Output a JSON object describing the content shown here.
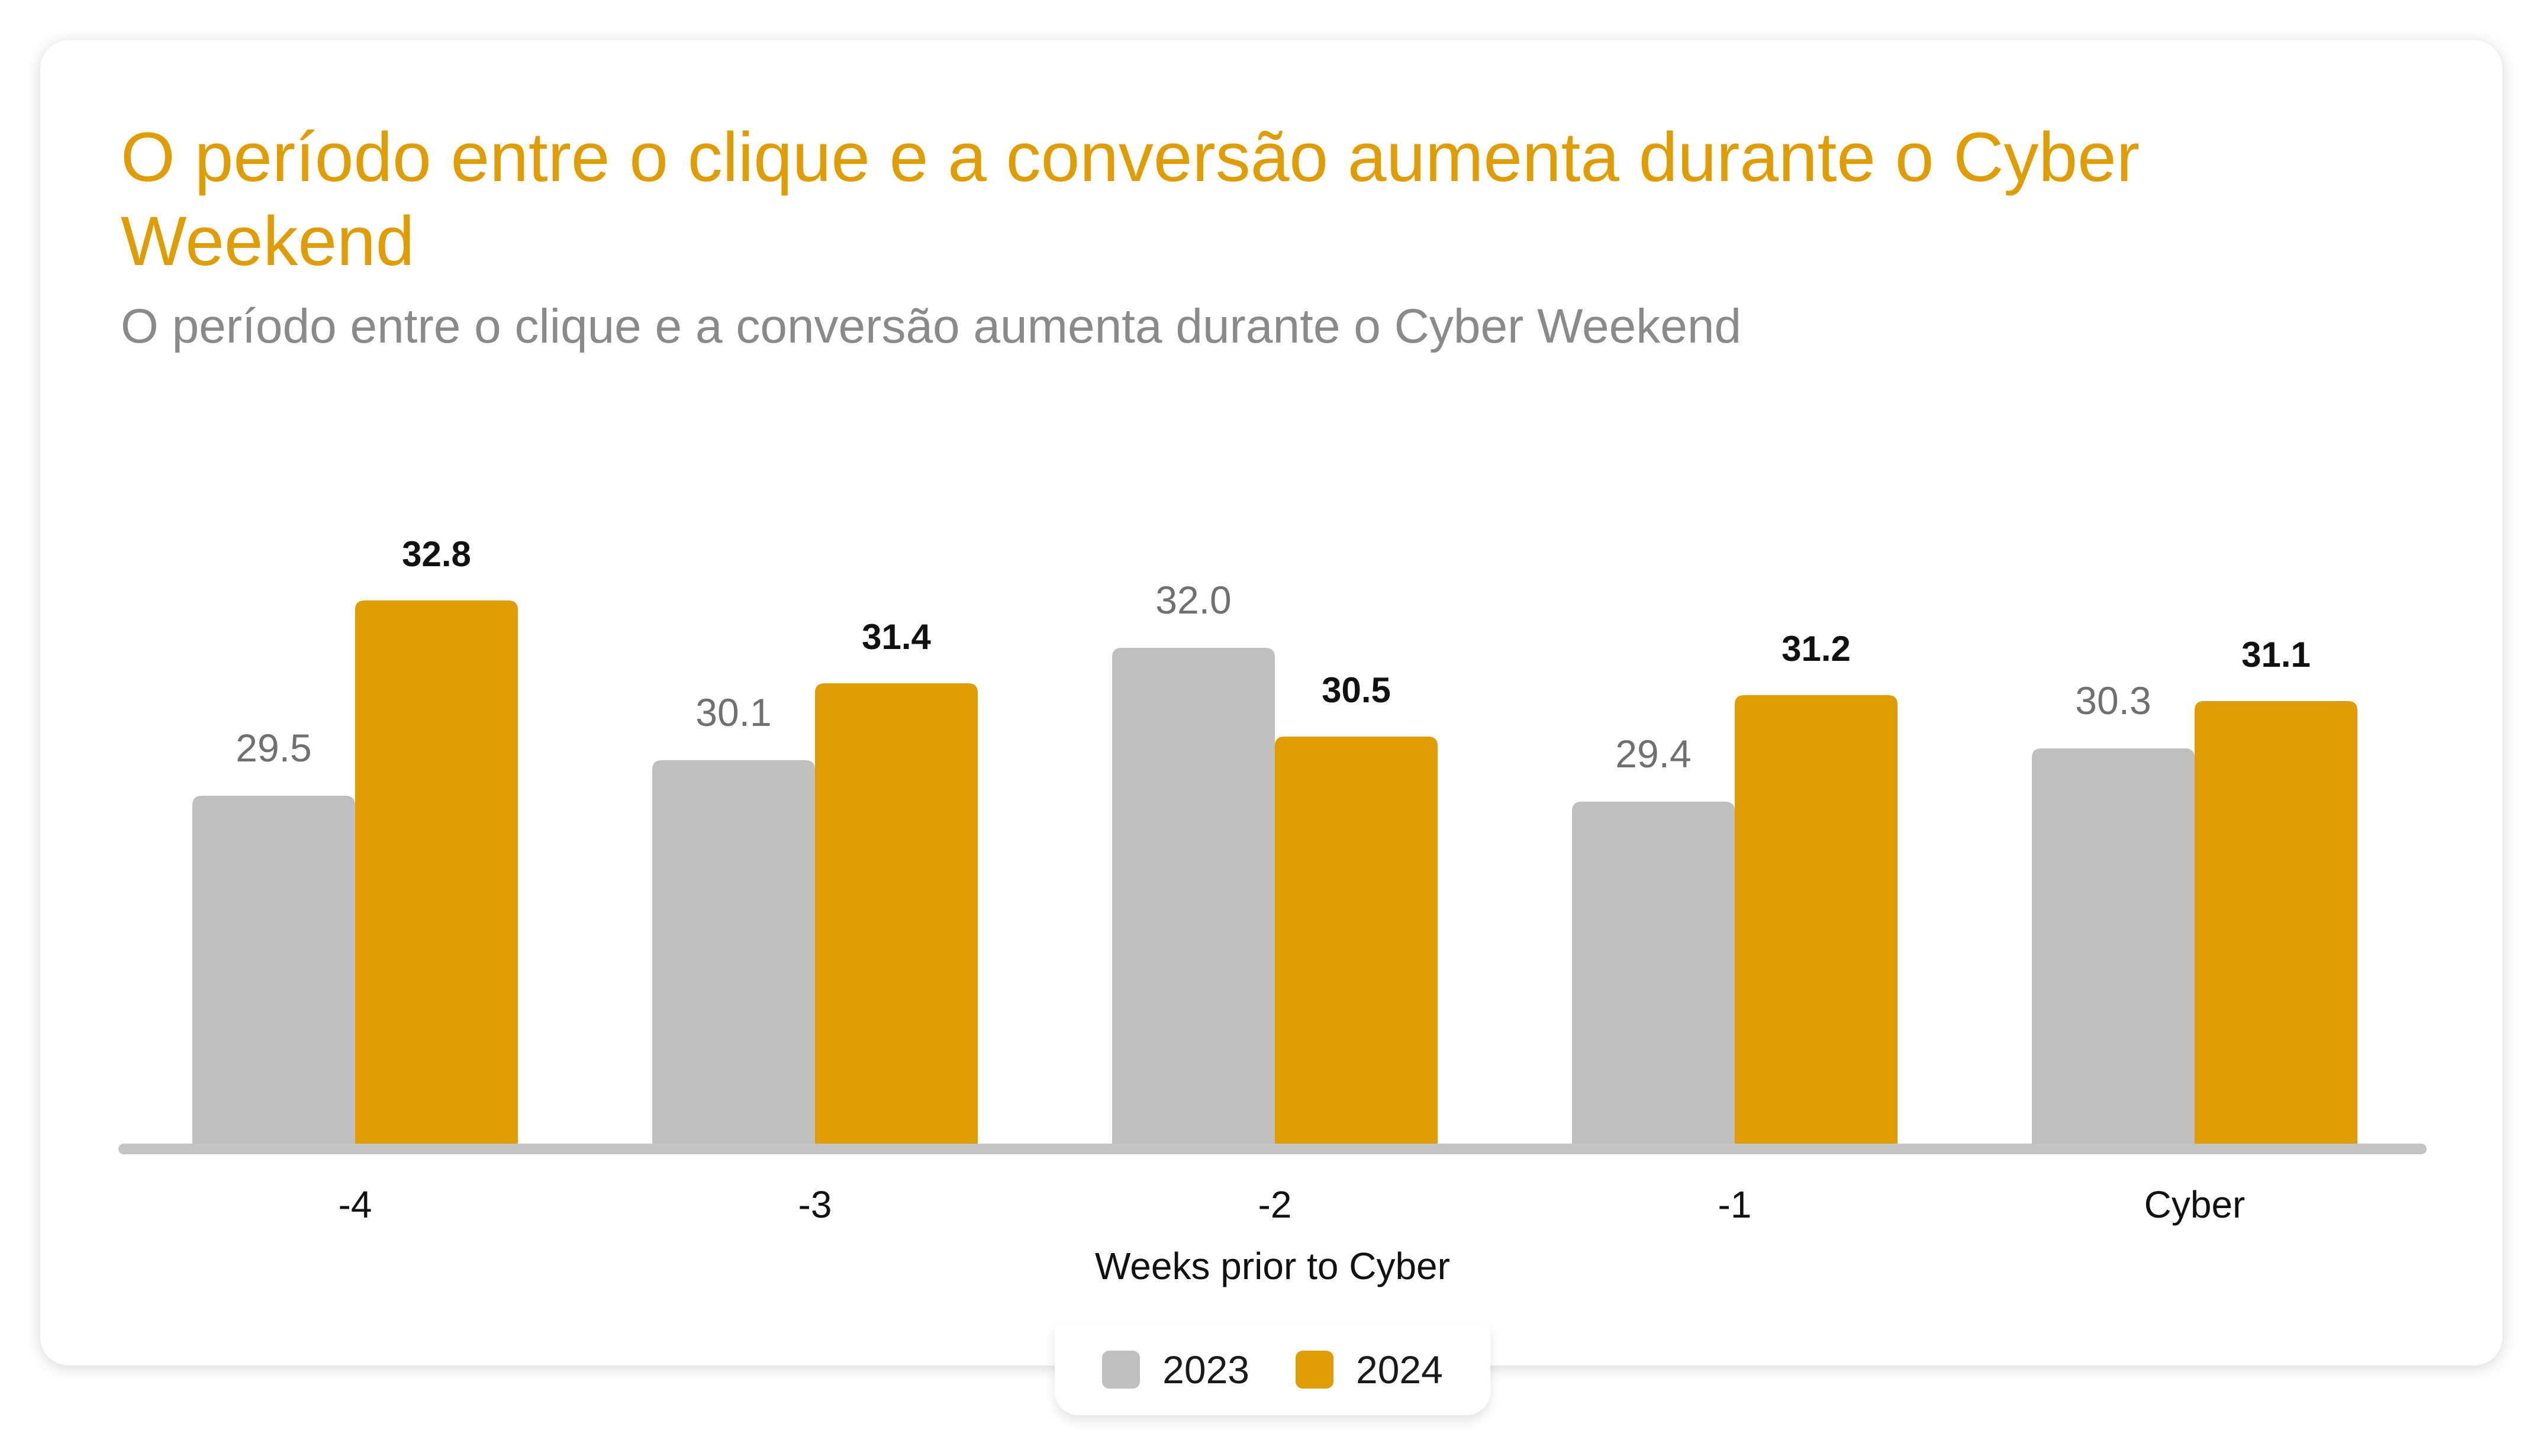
{
  "colors": {
    "series_2023": "#bfbfbf",
    "series_2024": "#e09d03",
    "axis": "#c4c4c4",
    "title": "#e09d03",
    "subtitle": "#8a8a8a"
  },
  "chart_data": {
    "type": "bar",
    "title": "O período entre o clique e a conversão aumenta durante o Cyber Weekend",
    "subtitle": "O período entre o clique e a conversão aumenta durante o Cyber Weekend",
    "xlabel": "Weeks prior to Cyber",
    "ylabel": "",
    "categories": [
      "-4",
      "-3",
      "-2",
      "-1",
      "Cyber"
    ],
    "series": [
      {
        "name": "2023",
        "values": [
          29.5,
          30.1,
          32.0,
          29.4,
          30.3
        ],
        "labels": [
          "29.5",
          "30.1",
          "32.0",
          "29.4",
          "30.3"
        ]
      },
      {
        "name": "2024",
        "values": [
          32.8,
          31.4,
          30.5,
          31.2,
          31.1
        ],
        "labels": [
          "32.8",
          "31.4",
          "30.5",
          "31.2",
          "31.1"
        ]
      }
    ],
    "ylim": [
      23.6,
      33.9
    ],
    "grid": false,
    "legend": "bottom-center"
  }
}
